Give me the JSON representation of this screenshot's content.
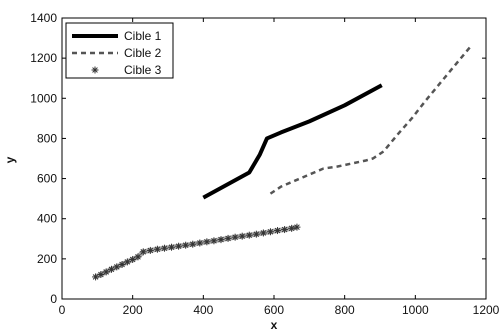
{
  "chart_data": {
    "type": "line",
    "title": "",
    "xlabel": "x",
    "ylabel": "y",
    "xlim": [
      0,
      1200
    ],
    "ylim": [
      0,
      1400
    ],
    "xticks": [
      0,
      200,
      400,
      600,
      800,
      1000,
      1200
    ],
    "yticks": [
      0,
      200,
      400,
      600,
      800,
      1000,
      1200,
      1400
    ],
    "xtick_labels": [
      "0",
      "200",
      "400",
      "600",
      "800",
      "1000",
      "1200"
    ],
    "ytick_labels": [
      "0",
      "200",
      "400",
      "600",
      "800",
      "1000",
      "1200",
      "1400"
    ],
    "grid": false,
    "legend_position": "top-left",
    "series": [
      {
        "name": "Cible 1",
        "style": "solid-thick",
        "color": "#000000",
        "x": [
          400,
          530,
          560,
          580,
          620,
          700,
          800,
          905
        ],
        "y": [
          505,
          630,
          720,
          800,
          830,
          885,
          965,
          1065
        ]
      },
      {
        "name": "Cible 2",
        "style": "dashed-markers",
        "color": "#555555",
        "x": [
          590,
          620,
          660,
          700,
          740,
          780,
          820,
          860,
          880,
          910,
          950,
          990,
          1030,
          1070,
          1110,
          1155
        ],
        "y": [
          525,
          560,
          590,
          620,
          650,
          660,
          675,
          690,
          700,
          735,
          820,
          900,
          990,
          1075,
          1160,
          1255
        ]
      },
      {
        "name": "Cible 3",
        "style": "star-markers",
        "color": "#777777",
        "x": [
          95,
          110,
          125,
          140,
          155,
          170,
          185,
          200,
          215,
          230,
          250,
          270,
          290,
          310,
          330,
          350,
          370,
          390,
          410,
          430,
          450,
          470,
          490,
          510,
          530,
          550,
          570,
          590,
          610,
          630,
          650,
          665
        ],
        "y": [
          110,
          122,
          135,
          148,
          160,
          172,
          185,
          197,
          210,
          235,
          242,
          248,
          253,
          258,
          263,
          268,
          273,
          279,
          285,
          290,
          296,
          302,
          308,
          313,
          318,
          323,
          329,
          335,
          341,
          346,
          352,
          358
        ]
      }
    ]
  }
}
